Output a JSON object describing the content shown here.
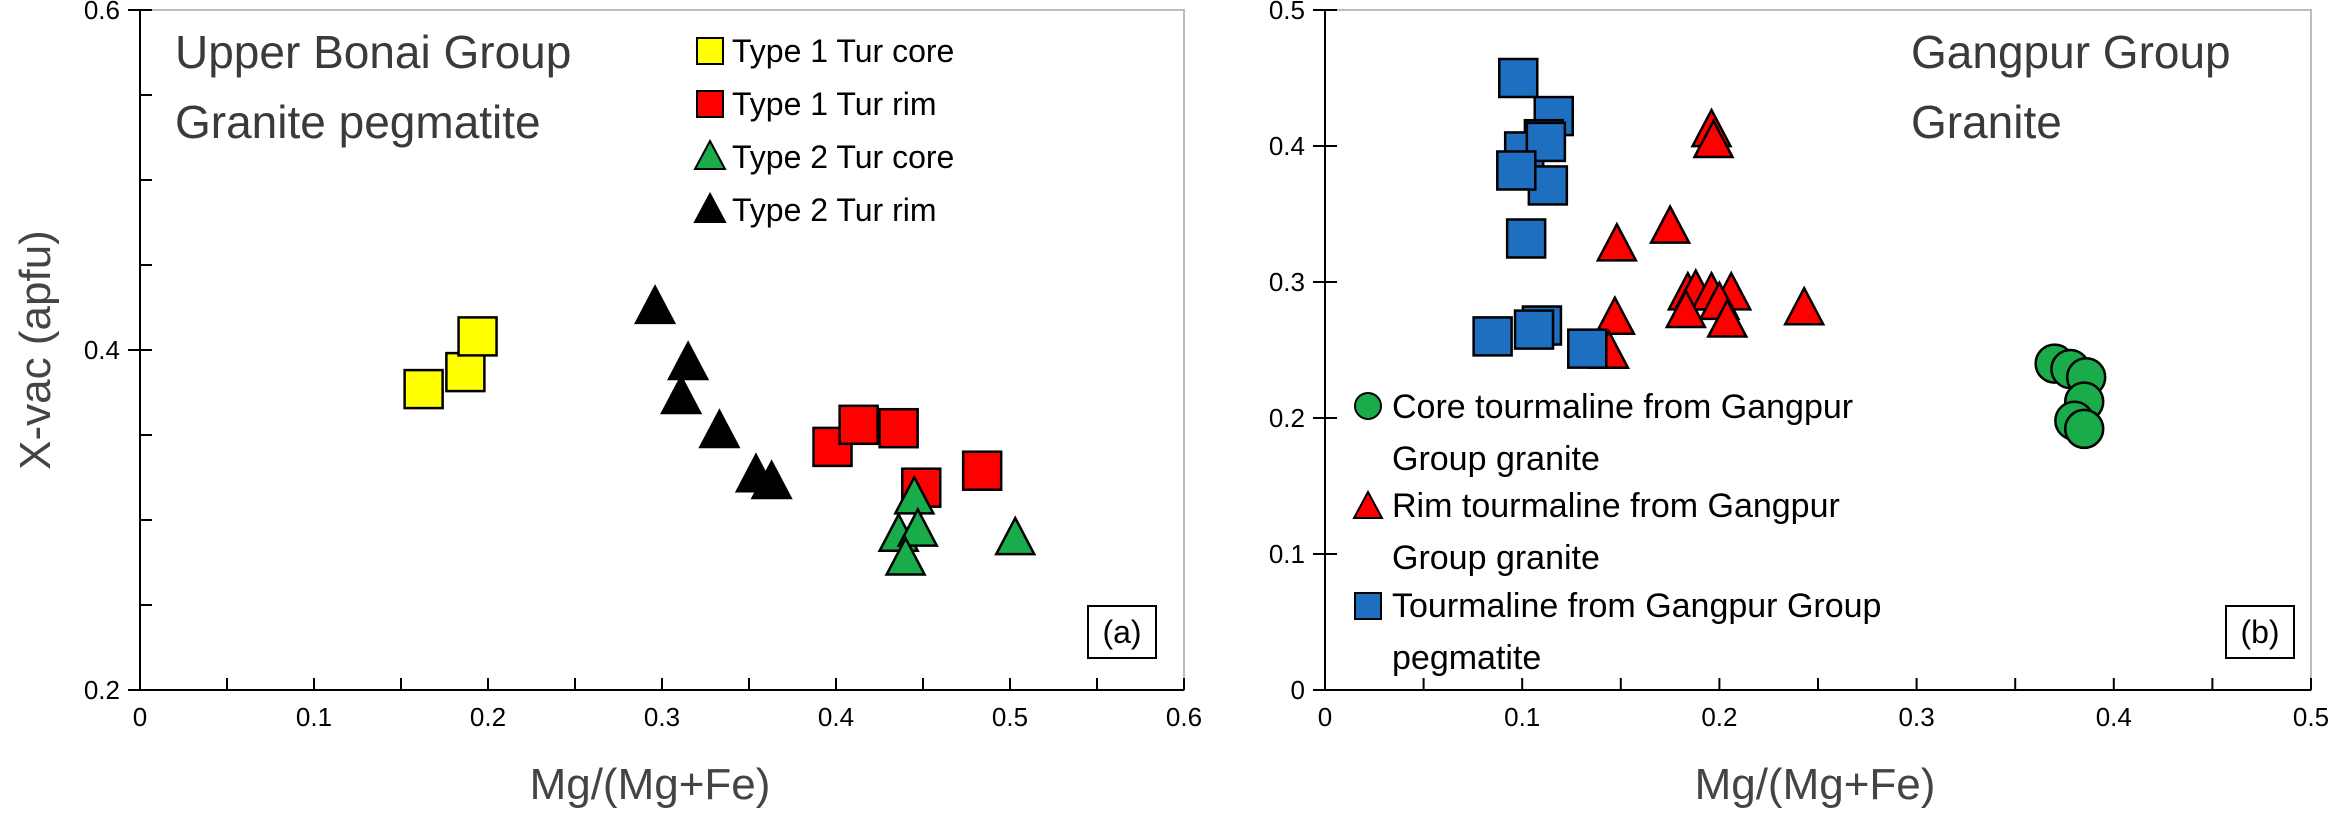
{
  "chart_data": [
    {
      "panel_label": "(a)",
      "type": "scatter",
      "title_lines": [
        "Upper Bonai Group",
        "Granite pegmatite"
      ],
      "xlabel": "Mg/(Mg+Fe)",
      "ylabel": "X-vac (apfu)",
      "xlim": [
        0,
        0.6
      ],
      "ylim": [
        0.2,
        0.6
      ],
      "xticks": [
        0,
        0.1,
        0.2,
        0.3,
        0.4,
        0.5,
        0.6
      ],
      "xtick_labels": [
        "0",
        "0.1",
        "0.2",
        "0.3",
        "0.4",
        "0.5",
        "0.6"
      ],
      "yticks": [
        0.2,
        0.4,
        0.6
      ],
      "ytick_labels": [
        "0.2",
        "0.4",
        "0.6"
      ],
      "legend_position": "top-right",
      "series": [
        {
          "name": "Type 1 Tur core",
          "marker": "square",
          "color": "#ffff00",
          "x": [
            0.163,
            0.187,
            0.194
          ],
          "y": [
            0.377,
            0.387,
            0.408
          ]
        },
        {
          "name": "Type 1 Tur rim",
          "marker": "square",
          "color": "#ff0000",
          "x": [
            0.398,
            0.413,
            0.436,
            0.449,
            0.484
          ],
          "y": [
            0.343,
            0.356,
            0.354,
            0.319,
            0.329
          ]
        },
        {
          "name": "Type 2 Tur core",
          "marker": "triangle",
          "color": "#1aab4a",
          "x": [
            0.445,
            0.436,
            0.447,
            0.44,
            0.503
          ],
          "y": [
            0.312,
            0.29,
            0.293,
            0.276,
            0.288
          ]
        },
        {
          "name": "Type 2 Tur rim",
          "marker": "triangle",
          "color": "#000000",
          "x": [
            0.296,
            0.315,
            0.311,
            0.333,
            0.354,
            0.363
          ],
          "y": [
            0.424,
            0.391,
            0.371,
            0.351,
            0.325,
            0.321
          ]
        }
      ]
    },
    {
      "panel_label": "(b)",
      "type": "scatter",
      "title_lines": [
        "Gangpur Group",
        "Granite"
      ],
      "xlabel": "Mg/(Mg+Fe)",
      "ylabel": "",
      "xlim": [
        0,
        0.5
      ],
      "ylim": [
        0,
        0.5
      ],
      "xticks": [
        0,
        0.1,
        0.2,
        0.3,
        0.4,
        0.5
      ],
      "xtick_labels": [
        "0",
        "0.1",
        "0.2",
        "0.3",
        "0.4",
        "0.5"
      ],
      "yticks": [
        0,
        0.1,
        0.2,
        0.3,
        0.4,
        0.5
      ],
      "ytick_labels": [
        "0",
        "0.1",
        "0.2",
        "0.3",
        "0.4",
        "0.5"
      ],
      "legend_position": "bottom-left",
      "series": [
        {
          "name_lines": [
            "Core tourmaline from Gangpur",
            "Group granite"
          ],
          "marker": "circle",
          "color": "#1aab4a",
          "x": [
            0.37,
            0.378,
            0.386,
            0.385,
            0.38,
            0.385
          ],
          "y": [
            0.24,
            0.236,
            0.23,
            0.212,
            0.198,
            0.192
          ]
        },
        {
          "name_lines": [
            "Rim tourmaline from Gangpur",
            "Group granite"
          ],
          "marker": "triangle",
          "color": "#ff0000",
          "x": [
            0.196,
            0.197,
            0.175,
            0.148,
            0.147,
            0.144,
            0.184,
            0.188,
            0.196,
            0.206,
            0.2,
            0.183,
            0.204,
            0.243
          ],
          "y": [
            0.41,
            0.402,
            0.339,
            0.326,
            0.272,
            0.247,
            0.29,
            0.292,
            0.29,
            0.29,
            0.283,
            0.277,
            0.27,
            0.279
          ]
        },
        {
          "name_lines": [
            "Tourmaline from Gangpur Group",
            "pegmatite"
          ],
          "marker": "square",
          "color": "#1e6fc0",
          "x": [
            0.098,
            0.116,
            0.111,
            0.101,
            0.112,
            0.113,
            0.097,
            0.102,
            0.11,
            0.106,
            0.085,
            0.133
          ],
          "y": [
            0.45,
            0.422,
            0.405,
            0.396,
            0.403,
            0.371,
            0.382,
            0.332,
            0.268,
            0.265,
            0.26,
            0.251
          ]
        }
      ]
    }
  ]
}
